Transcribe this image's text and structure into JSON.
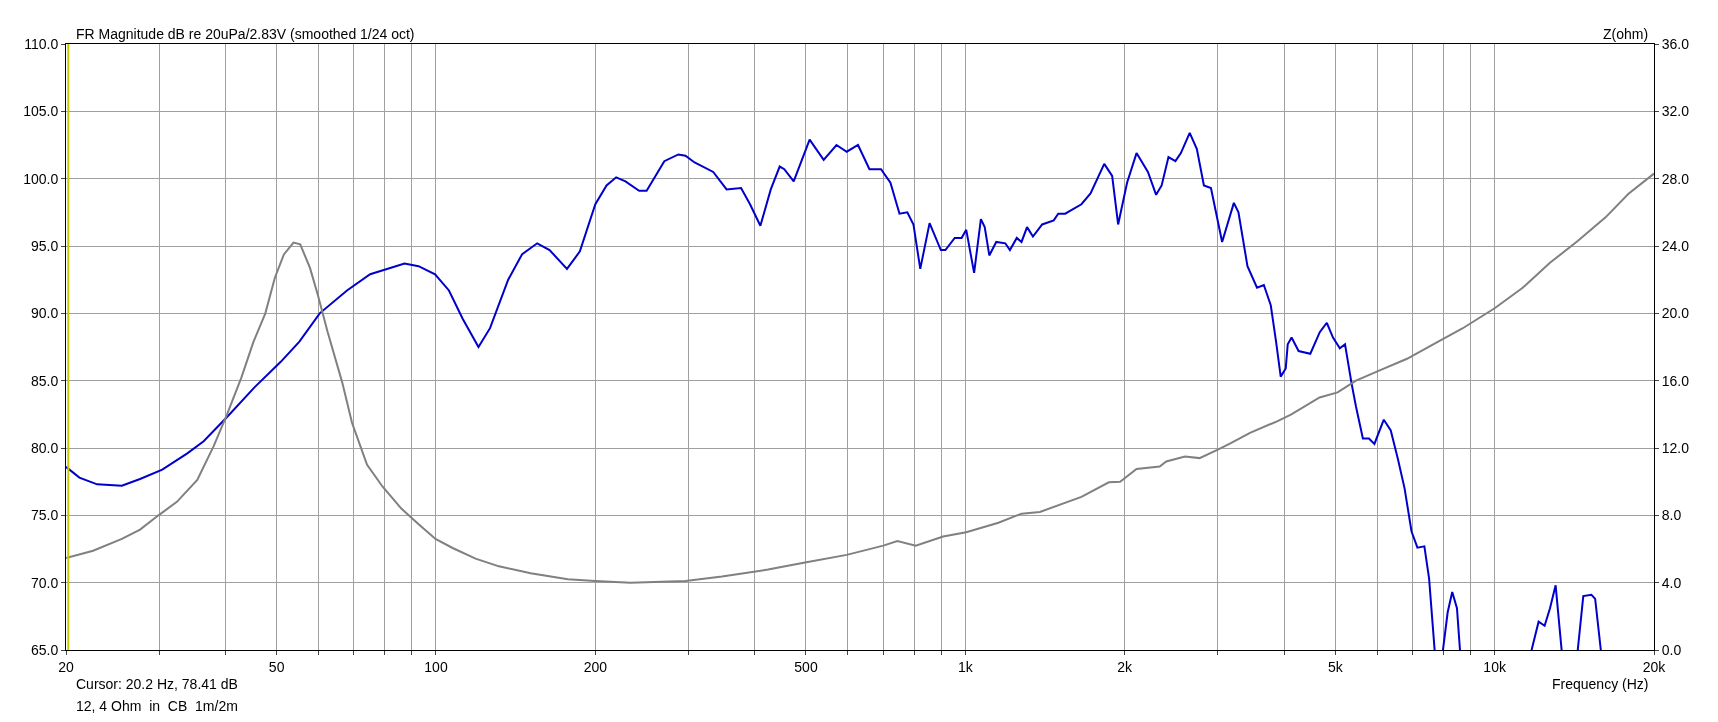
{
  "chart_data": {
    "type": "line",
    "title": "FR Magnitude dB re 20uPa/2.83V (smoothed 1/24 oct)",
    "xlabel": "Frequency (Hz)",
    "y2label": "Z(ohm)",
    "annotations": [
      "Cursor: 20.2 Hz, 78.41 dB",
      "12, 4 Ohm  in  CB  1m/2m"
    ],
    "log": "x",
    "grid": true,
    "marker": "none",
    "line_style": "solid",
    "xlim": [
      20,
      20000
    ],
    "xticks": [
      20,
      {
        "value": 30,
        "label": null
      },
      {
        "value": 40,
        "label": null
      },
      50,
      {
        "value": 60,
        "label": null
      },
      {
        "value": 70,
        "label": null
      },
      {
        "value": 80,
        "label": null
      },
      {
        "value": 90,
        "label": null
      },
      100,
      200,
      {
        "value": 300,
        "label": null
      },
      {
        "value": 400,
        "label": null
      },
      500,
      {
        "value": 600,
        "label": null
      },
      {
        "value": 700,
        "label": null
      },
      {
        "value": 800,
        "label": null
      },
      {
        "value": 900,
        "label": null
      },
      {
        "value": 1000,
        "label": "1k"
      },
      {
        "value": 2000,
        "label": "2k"
      },
      {
        "value": 3000,
        "label": null
      },
      {
        "value": 4000,
        "label": null
      },
      {
        "value": 5000,
        "label": "5k"
      },
      {
        "value": 6000,
        "label": null
      },
      {
        "value": 7000,
        "label": null
      },
      {
        "value": 8000,
        "label": null
      },
      {
        "value": 9000,
        "label": null
      },
      {
        "value": 10000,
        "label": "10k"
      },
      {
        "value": 20000,
        "label": "20k"
      }
    ],
    "ylim": [
      65,
      110
    ],
    "yticks": [
      {
        "value": 65,
        "label": "65.0"
      },
      {
        "value": 70,
        "label": "70.0"
      },
      {
        "value": 75,
        "label": "75.0"
      },
      {
        "value": 80,
        "label": "80.0"
      },
      {
        "value": 85,
        "label": "85.0"
      },
      {
        "value": 90,
        "label": "90.0"
      },
      {
        "value": 95,
        "label": "95.0"
      },
      {
        "value": 100,
        "label": "100.0"
      },
      {
        "value": 105,
        "label": "105.0"
      },
      {
        "value": 110,
        "label": "110.0"
      }
    ],
    "y2lim": [
      0,
      36
    ],
    "y2ticks": [
      {
        "value": 0,
        "label": "0.0"
      },
      {
        "value": 4,
        "label": "4.0"
      },
      {
        "value": 8,
        "label": "8.0"
      },
      {
        "value": 12,
        "label": "12.0"
      },
      {
        "value": 16,
        "label": "16.0"
      },
      {
        "value": 20,
        "label": "20.0"
      },
      {
        "value": 24,
        "label": "24.0"
      },
      {
        "value": 28,
        "label": "28.0"
      },
      {
        "value": 32,
        "label": "32.0"
      },
      {
        "value": 36,
        "label": "36.0"
      }
    ],
    "ref_lines": [
      {
        "axis": "x",
        "value": 20.2,
        "color": "#c8c800"
      }
    ],
    "series": [
      {
        "color": "#0000cc",
        "x": [
          20,
          21.2,
          22.9,
          25.5,
          27.6,
          30.4,
          33.9,
          36.4,
          40.3,
          45.4,
          50.9,
          55.2,
          60.3,
          67.9,
          75.1,
          87.2,
          92.7,
          99.6,
          105.8,
          112.3,
          120.3,
          126.5,
          136.9,
          145.5,
          155.3,
          163.9,
          176.8,
          187,
          200,
          210,
          219,
          228,
          242,
          250,
          270,
          287,
          296,
          308,
          334,
          354,
          377,
          392,
          410,
          429,
          446,
          455,
          474,
          508,
          540,
          571,
          597,
          627,
          659,
          693,
          722,
          751,
          777,
          798,
          822,
          856,
          899,
          917,
          955,
          984,
          1004,
          1039,
          1070,
          1088,
          1110,
          1144,
          1190,
          1214,
          1251,
          1277,
          1308,
          1342,
          1397,
          1469,
          1498,
          1544,
          1657,
          1724,
          1830,
          1894,
          1944,
          2021,
          2106,
          2213,
          2293,
          2349,
          2420,
          2494,
          2554,
          2654,
          2738,
          2823,
          2911,
          3056,
          3216,
          3281,
          3412,
          3557,
          3664,
          3776,
          3864,
          3943,
          4030,
          4065,
          4134,
          4262,
          4485,
          4673,
          4819,
          4950,
          5099,
          5216,
          5366,
          5469,
          5637,
          5787,
          5927,
          6174,
          6364,
          6563,
          6758,
          6966,
          7147,
          7366,
          7519,
          7702,
          7850,
          7986,
          8152,
          8315,
          8488,
          8600,
          10000,
          11743,
          12107,
          12428,
          12722,
          13037,
          13382,
          13900,
          14354,
          14704,
          15236,
          15484,
          15870
        ],
        "values": [
          78.6,
          77.8,
          77.3,
          77.2,
          77.7,
          78.4,
          79.6,
          80.5,
          82.3,
          84.5,
          86.4,
          87.9,
          90.0,
          91.7,
          92.9,
          93.7,
          93.5,
          92.9,
          91.7,
          89.6,
          87.5,
          88.9,
          92.5,
          94.4,
          95.2,
          94.7,
          93.3,
          94.6,
          98.1,
          99.5,
          100.1,
          99.8,
          99.1,
          99.1,
          101.3,
          101.8,
          101.7,
          101.2,
          100.5,
          99.2,
          99.3,
          98.1,
          96.5,
          99.2,
          100.9,
          100.7,
          99.8,
          102.9,
          101.4,
          102.5,
          102.0,
          102.5,
          100.7,
          100.7,
          99.7,
          97.4,
          97.5,
          96.6,
          93.3,
          96.7,
          94.7,
          94.7,
          95.6,
          95.6,
          96.2,
          93.0,
          97.0,
          96.4,
          94.3,
          95.3,
          95.2,
          94.7,
          95.6,
          95.3,
          96.4,
          95.7,
          96.6,
          96.9,
          97.4,
          97.4,
          98.1,
          98.9,
          101.1,
          100.2,
          96.6,
          99.7,
          101.9,
          100.5,
          98.8,
          99.5,
          101.6,
          101.3,
          101.9,
          103.4,
          102.2,
          99.5,
          99.3,
          95.3,
          98.2,
          97.5,
          93.5,
          91.9,
          92.1,
          90.6,
          87.9,
          85.3,
          85.9,
          87.7,
          88.2,
          87.2,
          87.0,
          88.6,
          89.3,
          88.2,
          87.4,
          87.7,
          84.8,
          83.1,
          80.7,
          80.7,
          80.3,
          82.1,
          81.3,
          79.2,
          77.0,
          73.8,
          72.6,
          72.7,
          70.3,
          65.0,
          null,
          65.0,
          67.8,
          69.3,
          68.1,
          65.0,
          null,
          65.0,
          67.1,
          66.8,
          68.1,
          69.8,
          65.0,
          null,
          65.0,
          69.0,
          69.1,
          68.8,
          65.0
        ]
      },
      {
        "color": "#808080",
        "axis": "y2",
        "x": [
          20,
          22.5,
          25.5,
          27.6,
          29.9,
          32.4,
          35.4,
          38.0,
          40.3,
          42.9,
          45.2,
          47.6,
          49.6,
          51.6,
          53.8,
          55.4,
          57.8,
          59.8,
          62.4,
          66.5,
          69.4,
          74.1,
          79.3,
          86.0,
          93.3,
          99.8,
          107.5,
          118.8,
          131.5,
          151.0,
          177.4,
          200,
          233,
          296,
          347,
          424,
          498,
          597,
          700,
          744,
          806,
          908,
          1004,
          1155,
          1277,
          1383,
          1657,
          1867,
          1961,
          2106,
          2329,
          2397,
          2600,
          2770,
          3000,
          3180,
          3450,
          3890,
          4130,
          4670,
          5050,
          5470,
          6050,
          6830,
          7700,
          8690,
          10000,
          11280,
          12720,
          14350,
          16200,
          17900,
          20000
        ],
        "values": [
          5.46,
          5.9,
          6.6,
          7.15,
          8.0,
          8.8,
          10.1,
          12.1,
          14.0,
          16.2,
          18.3,
          20.0,
          22.1,
          23.5,
          24.2,
          24.1,
          22.7,
          21.1,
          18.9,
          15.9,
          13.5,
          11.0,
          9.7,
          8.4,
          7.4,
          6.6,
          6.06,
          5.43,
          4.97,
          4.56,
          4.2,
          4.1,
          4.0,
          4.1,
          4.37,
          4.78,
          5.2,
          5.65,
          6.2,
          6.47,
          6.2,
          6.74,
          7.0,
          7.56,
          8.1,
          8.2,
          9.1,
          9.96,
          10.0,
          10.75,
          10.9,
          11.2,
          11.5,
          11.4,
          11.9,
          12.3,
          12.9,
          13.6,
          14.0,
          15.0,
          15.3,
          16.0,
          16.6,
          17.3,
          18.2,
          19.1,
          20.3,
          21.5,
          23.0,
          24.3,
          25.7,
          27.1,
          28.3
        ]
      }
    ]
  }
}
